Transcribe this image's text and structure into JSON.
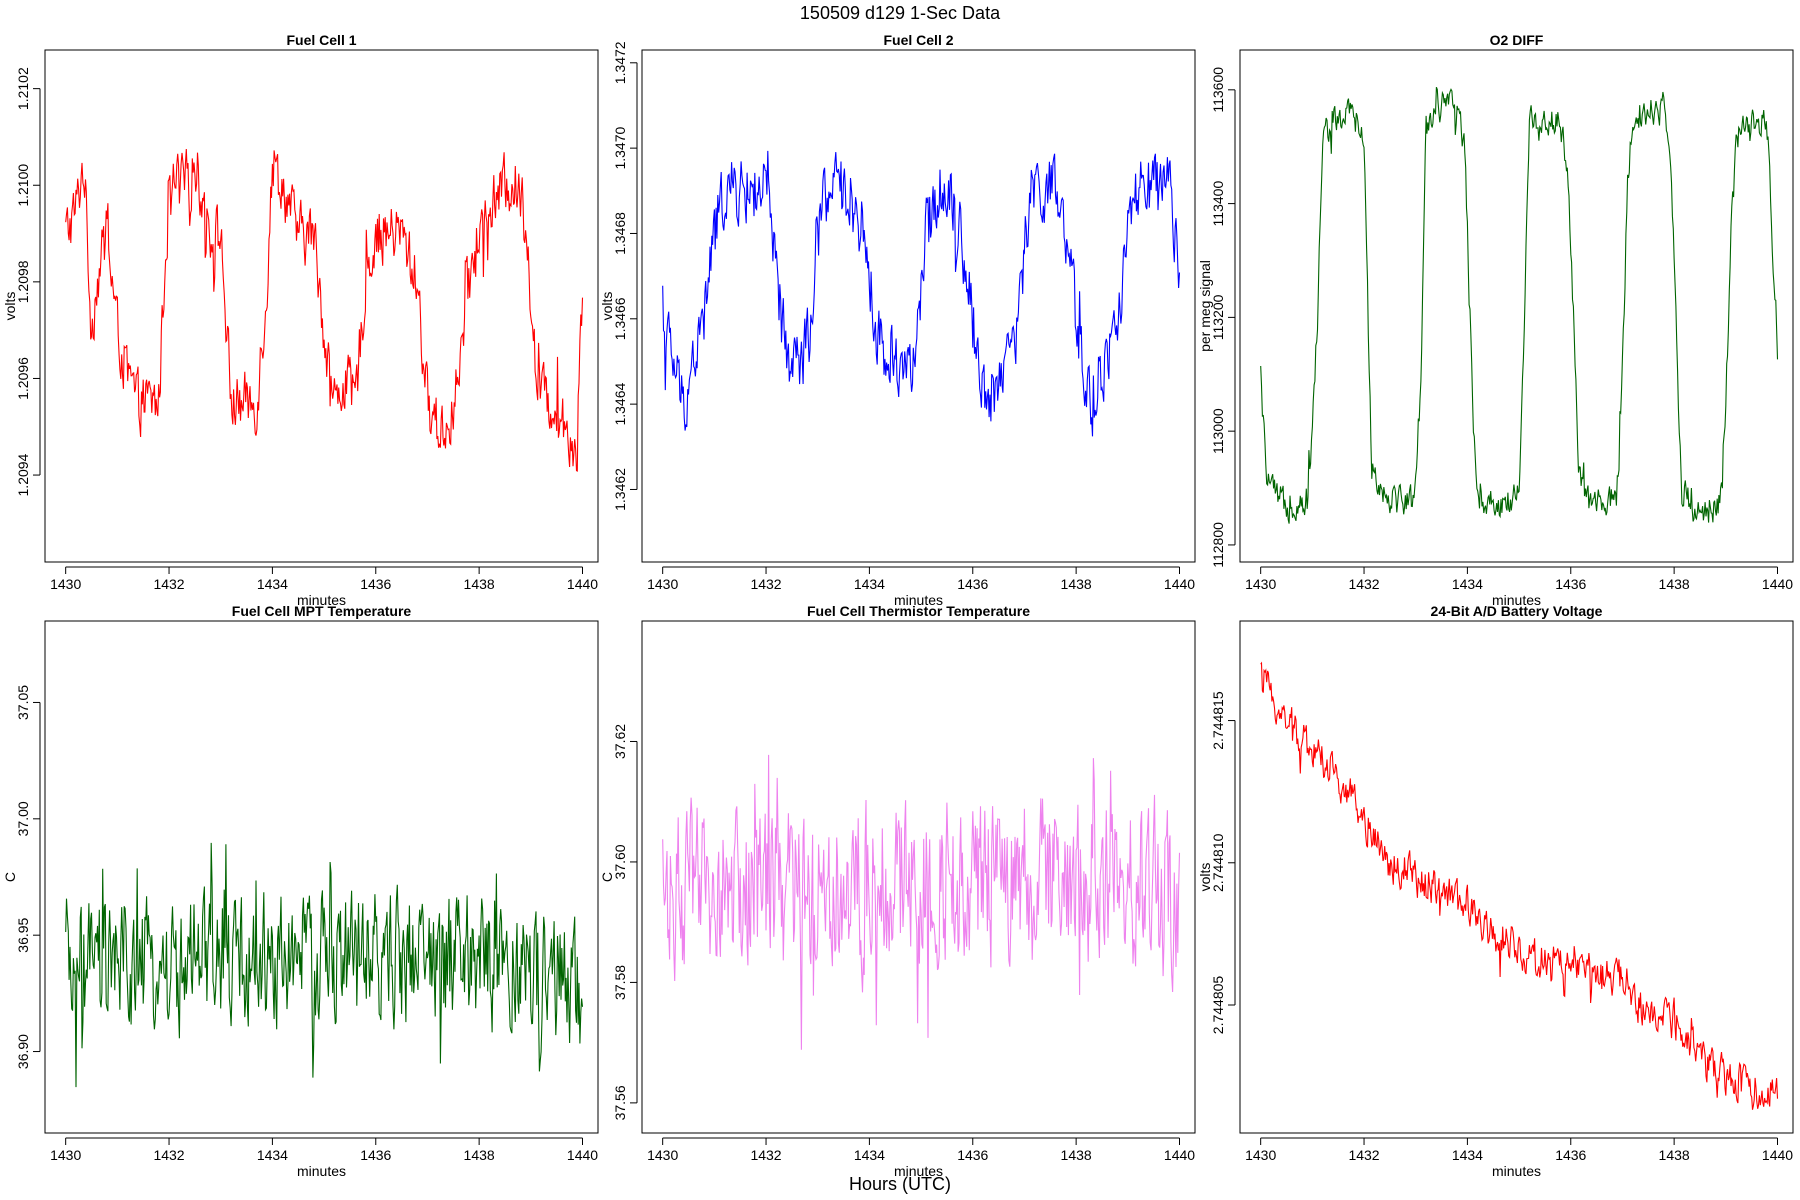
{
  "figure": {
    "suptitle": "150509   d129   1-Sec Data",
    "outer_xlabel": "Hours (UTC)"
  },
  "chart_data": [
    {
      "type": "line",
      "title": "Fuel Cell 1",
      "xlabel": "minutes",
      "ylabel": "volts",
      "color": "#ff0000",
      "xlim": [
        1429.6,
        1440.3
      ],
      "ylim": [
        1.20922,
        1.21028
      ],
      "xticks": [
        1430,
        1432,
        1434,
        1436,
        1438,
        1440
      ],
      "yticks": [
        1.2094,
        1.2096,
        1.2098,
        1.21,
        1.2102
      ],
      "ytick_labels": [
        "1.2094",
        "1.2096",
        "1.2098",
        "1.2100",
        "1.2102"
      ],
      "noise": 5.5e-05,
      "series": [
        {
          "x": [
            1430.0,
            1430.2,
            1430.35,
            1430.5,
            1430.6,
            1430.8,
            1431.0,
            1431.2,
            1431.4,
            1431.6,
            1431.8,
            1431.95,
            1432.1,
            1432.3,
            1432.5,
            1432.8,
            1433.0,
            1433.2,
            1433.35,
            1433.5,
            1433.7,
            1433.9,
            1434.0,
            1434.2,
            1434.5,
            1434.8,
            1435.0,
            1435.2,
            1435.4,
            1435.6,
            1435.8,
            1436.0,
            1436.2,
            1436.5,
            1436.8,
            1437.0,
            1437.2,
            1437.4,
            1437.6,
            1437.8,
            1438.0,
            1438.2,
            1438.5,
            1438.7,
            1438.9,
            1439.1,
            1439.3,
            1439.5,
            1439.7,
            1439.9,
            1440.0
          ],
          "y": [
            1.2099,
            1.20995,
            1.21005,
            1.2097,
            1.2098,
            1.2099,
            1.2097,
            1.2096,
            1.20955,
            1.20955,
            1.20955,
            1.2099,
            1.21,
            1.21,
            1.21005,
            1.2099,
            1.2099,
            1.20955,
            1.20955,
            1.20955,
            1.20955,
            1.2098,
            1.21005,
            1.21,
            1.2099,
            1.2099,
            1.2097,
            1.20955,
            1.2096,
            1.20955,
            1.2098,
            1.2099,
            1.2099,
            1.2099,
            1.2098,
            1.20955,
            1.2095,
            1.2095,
            1.2096,
            1.2098,
            1.2099,
            1.20995,
            1.21,
            1.21,
            1.20995,
            1.2096,
            1.20955,
            1.20955,
            1.2095,
            1.20945,
            1.2098
          ]
        }
      ]
    },
    {
      "type": "line",
      "title": "Fuel Cell 2",
      "xlabel": "minutes",
      "ylabel": "volts",
      "color": "#0000ff",
      "xlim": [
        1429.6,
        1440.3
      ],
      "ylim": [
        1.34603,
        1.34723
      ],
      "xticks": [
        1430,
        1432,
        1434,
        1436,
        1438,
        1440
      ],
      "yticks": [
        1.3462,
        1.3464,
        1.3466,
        1.3468,
        1.347,
        1.3472
      ],
      "ytick_labels": [
        "1.3462",
        "1.3464",
        "1.3466",
        "1.3468",
        "1.3470",
        "1.3472"
      ],
      "noise": 7e-05,
      "series": [
        {
          "x": [
            1430.0,
            1430.2,
            1430.4,
            1430.6,
            1430.8,
            1431.0,
            1431.2,
            1431.5,
            1431.8,
            1432.0,
            1432.2,
            1432.4,
            1432.7,
            1432.9,
            1433.1,
            1433.3,
            1433.6,
            1433.9,
            1434.1,
            1434.3,
            1434.6,
            1434.9,
            1435.1,
            1435.3,
            1435.6,
            1435.9,
            1436.1,
            1436.3,
            1436.6,
            1436.9,
            1437.1,
            1437.3,
            1437.6,
            1437.9,
            1438.1,
            1438.3,
            1438.6,
            1438.8,
            1439.0,
            1439.2,
            1439.4,
            1439.6,
            1439.8,
            1440.0
          ],
          "y": [
            1.3466,
            1.3465,
            1.3464,
            1.3465,
            1.3466,
            1.3468,
            1.3469,
            1.3469,
            1.3469,
            1.3469,
            1.3467,
            1.3465,
            1.3465,
            1.3466,
            1.3469,
            1.3469,
            1.3469,
            1.3468,
            1.3466,
            1.3465,
            1.3465,
            1.3465,
            1.3468,
            1.3469,
            1.3469,
            1.3467,
            1.3465,
            1.3464,
            1.3465,
            1.3466,
            1.3469,
            1.3469,
            1.3469,
            1.3467,
            1.3465,
            1.3464,
            1.3465,
            1.3466,
            1.3468,
            1.3469,
            1.3469,
            1.3469,
            1.3469,
            1.3467
          ]
        }
      ]
    },
    {
      "type": "line",
      "title": "O2 DIFF",
      "xlabel": "minutes",
      "ylabel": "per meg signal",
      "color": "#006400",
      "xlim": [
        1429.6,
        1440.3
      ],
      "ylim": [
        112770,
        113670
      ],
      "xticks": [
        1430,
        1432,
        1434,
        1436,
        1438,
        1440
      ],
      "yticks": [
        112800,
        113000,
        113200,
        113400,
        113600
      ],
      "ytick_labels": [
        "112800",
        "113000",
        "113200",
        "113400",
        "113600"
      ],
      "noise": 25,
      "series": [
        {
          "x": [
            1430.0,
            1430.1,
            1430.3,
            1430.6,
            1430.9,
            1431.0,
            1431.1,
            1431.2,
            1431.4,
            1431.8,
            1432.0,
            1432.05,
            1432.15,
            1432.3,
            1432.6,
            1432.9,
            1433.0,
            1433.1,
            1433.2,
            1433.4,
            1433.8,
            1433.95,
            1434.05,
            1434.15,
            1434.3,
            1434.6,
            1434.9,
            1435.0,
            1435.1,
            1435.2,
            1435.4,
            1435.8,
            1435.95,
            1436.05,
            1436.15,
            1436.3,
            1436.6,
            1436.9,
            1437.0,
            1437.1,
            1437.2,
            1437.4,
            1437.8,
            1437.95,
            1438.05,
            1438.15,
            1438.3,
            1438.6,
            1438.9,
            1439.0,
            1439.1,
            1439.2,
            1439.4,
            1439.8,
            1440.0
          ],
          "y": [
            113100,
            112930,
            112880,
            112870,
            112880,
            113000,
            113200,
            113520,
            113540,
            113560,
            113500,
            113300,
            112950,
            112900,
            112880,
            112880,
            112900,
            113100,
            113540,
            113570,
            113570,
            113500,
            113200,
            112930,
            112880,
            112870,
            112880,
            112900,
            113200,
            113540,
            113550,
            113540,
            113450,
            113200,
            112930,
            112880,
            112870,
            112880,
            113100,
            113450,
            113550,
            113560,
            113570,
            113450,
            113150,
            112900,
            112870,
            112860,
            112880,
            113050,
            113350,
            113510,
            113530,
            113540,
            113150
          ]
        }
      ]
    },
    {
      "type": "line",
      "title": "Fuel Cell MPT Temperature",
      "xlabel": "minutes",
      "ylabel": "C",
      "color": "#006400",
      "xlim": [
        1429.6,
        1440.3
      ],
      "ylim": [
        36.865,
        37.085
      ],
      "xticks": [
        1430,
        1432,
        1434,
        1436,
        1438,
        1440
      ],
      "yticks": [
        36.9,
        36.95,
        37.0,
        37.05
      ],
      "ytick_labels": [
        "36.90",
        "36.95",
        "37.00",
        "37.05"
      ],
      "noise": 0.025,
      "series": [
        {
          "x": [
            1430.0,
            1432.0,
            1434.0,
            1436.0,
            1438.0,
            1440.0
          ],
          "y": [
            36.935,
            36.935,
            36.94,
            36.94,
            36.94,
            36.925
          ]
        }
      ]
    },
    {
      "type": "line",
      "title": "Fuel Cell Thermistor Temperature",
      "xlabel": "minutes",
      "ylabel": "C",
      "color": "#ee82ee",
      "xlim": [
        1429.6,
        1440.3
      ],
      "ylim": [
        37.555,
        37.64
      ],
      "xticks": [
        1430,
        1432,
        1434,
        1436,
        1438,
        1440
      ],
      "yticks": [
        37.56,
        37.58,
        37.6,
        37.62
      ],
      "ytick_labels": [
        "37.56",
        "37.58",
        "37.60",
        "37.62"
      ],
      "noise": 0.012,
      "series": [
        {
          "x": [
            1430.0,
            1432.0,
            1434.0,
            1436.0,
            1438.0,
            1440.0
          ],
          "y": [
            37.595,
            37.595,
            37.597,
            37.596,
            37.597,
            37.595
          ]
        }
      ]
    },
    {
      "type": "line",
      "title": "24-Bit A/D Battery Voltage",
      "xlabel": "minutes",
      "ylabel": "volts",
      "color": "#ff0000",
      "xlim": [
        1429.6,
        1440.3
      ],
      "ylim": [
        2.7448005,
        2.7448185
      ],
      "xticks": [
        1430,
        1432,
        1434,
        1436,
        1438,
        1440
      ],
      "yticks": [
        2.744805,
        2.74481,
        2.744815
      ],
      "ytick_labels": [
        "2.744805",
        "2.744810",
        "2.744815"
      ],
      "noise": 6e-07,
      "series": [
        {
          "x": [
            1430.0,
            1430.5,
            1431.0,
            1431.5,
            1432.0,
            1432.5,
            1433.0,
            1433.5,
            1434.0,
            1434.5,
            1435.0,
            1435.5,
            1436.0,
            1436.5,
            1437.0,
            1437.5,
            1438.0,
            1438.5,
            1439.0,
            1439.5,
            1440.0
          ],
          "y": [
            2.7448165,
            2.744815,
            2.744814,
            2.744813,
            2.7448115,
            2.74481,
            2.7448095,
            2.744809,
            2.7448085,
            2.7448075,
            2.744807,
            2.7448065,
            2.7448065,
            2.744806,
            2.744806,
            2.7448045,
            2.7448045,
            2.744803,
            2.7448025,
            2.744802,
            2.744802
          ]
        }
      ]
    }
  ]
}
